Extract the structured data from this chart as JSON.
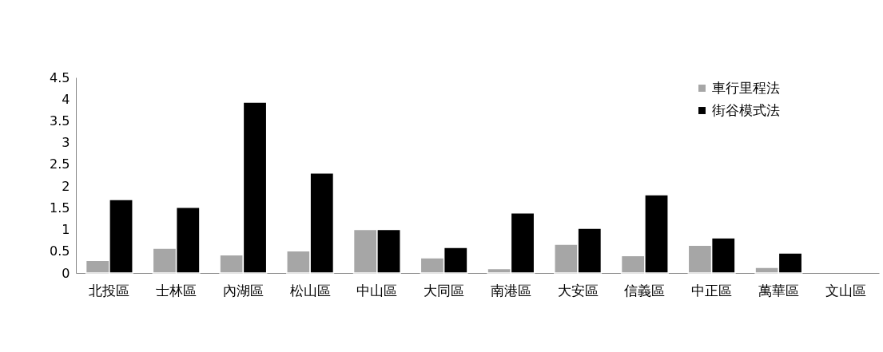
{
  "chart_data": {
    "type": "bar",
    "categories": [
      "北投區",
      "士林區",
      "內湖區",
      "松山區",
      "中山區",
      "大同區",
      "南港區",
      "大安區",
      "信義區",
      "中正區",
      "萬華區",
      "文山區"
    ],
    "series": [
      {
        "name": "車行里程法",
        "color": "#a6a6a6",
        "values": [
          0.29,
          0.57,
          0.42,
          0.51,
          1.0,
          0.35,
          0.1,
          0.66,
          0.4,
          0.64,
          0.13,
          null
        ]
      },
      {
        "name": "街谷模式法",
        "color": "#000000",
        "values": [
          1.69,
          1.51,
          3.93,
          2.3,
          1.0,
          0.59,
          1.38,
          1.03,
          1.8,
          0.81,
          0.46,
          null
        ]
      }
    ],
    "ylim": [
      0,
      4.5
    ],
    "yticks": [
      0,
      0.5,
      1,
      1.5,
      2,
      2.5,
      3,
      3.5,
      4,
      4.5
    ],
    "grid": false,
    "legend": "top right"
  }
}
